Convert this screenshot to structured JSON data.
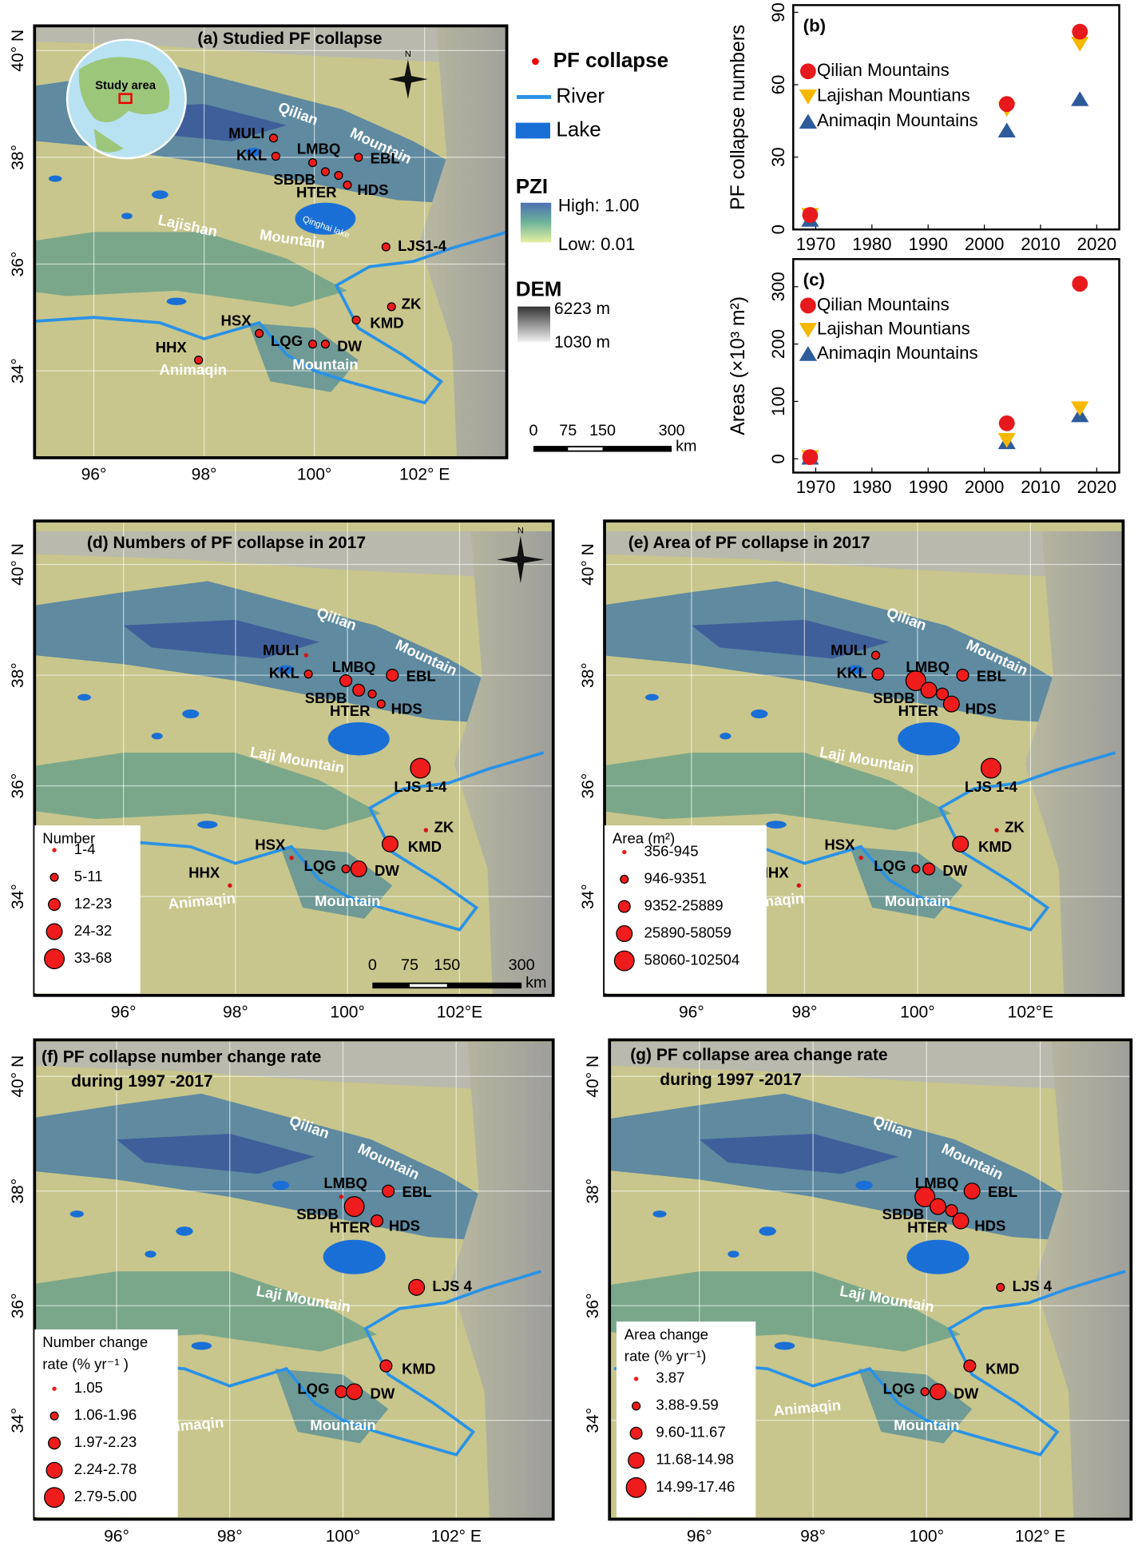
{
  "maps": [
    {
      "title": "(a) Studied PF collapse",
      "lon_ticks": [
        "96°",
        "98°",
        "100°",
        "102° E"
      ],
      "lat_ticks": [
        "40° N",
        "38°",
        "36°",
        "34°"
      ],
      "sites": [
        "MULI",
        "KKL",
        "LMBQ",
        "SBDB",
        "HTER",
        "HDS",
        "EBL",
        "LJS1-4",
        "ZK",
        "KMD",
        "DW",
        "LQG",
        "HSX",
        "HHX"
      ],
      "regions": [
        "Qilian",
        "Mountain",
        "Lajishan",
        "Mountain",
        "Animaqin",
        "Mountain"
      ],
      "lake_label": "Qinghai lake",
      "inset_label": "Study area",
      "north": "N",
      "legend": {
        "items": [
          "PF collapse",
          "River",
          "Lake"
        ],
        "pzi_title": "PZI",
        "pzi_high": "High: 1.00",
        "pzi_low": "Low: 0.01",
        "dem_title": "DEM",
        "dem_high": "6223 m",
        "dem_low": "1030 m"
      },
      "scale": {
        "ticks": [
          0,
          75,
          150,
          300
        ],
        "unit": "km"
      }
    },
    {
      "title": "(d) Numbers of PF collapse in 2017",
      "lon_ticks": [
        "96°",
        "98°",
        "100°",
        "102°E"
      ],
      "lat_ticks": [
        "40° N",
        "38°",
        "36°",
        "34°"
      ],
      "sites": [
        "MULI",
        "KKL",
        "LMBQ",
        "SBDB",
        "HTER",
        "HDS",
        "EBL",
        "LJS 1-4",
        "ZK",
        "KMD",
        "DW",
        "LQG",
        "HSX",
        "HHX"
      ],
      "regions": [
        "Qilian",
        "Mountain",
        "Laji Mountain",
        "Animaqin",
        "Mountain"
      ],
      "north": "N",
      "legend": {
        "title": [
          "Number"
        ],
        "items": [
          "1-4",
          "5-11",
          "12-23",
          "24-32",
          "33-68"
        ]
      },
      "scale": {
        "ticks": [
          0,
          75,
          150,
          300
        ],
        "unit": "km"
      }
    },
    {
      "title": "(e) Area of PF collapse in 2017",
      "lon_ticks": [
        "96°",
        "98°",
        "100°",
        "102°E"
      ],
      "lat_ticks": [
        "40° N",
        "38°",
        "36°",
        "34°"
      ],
      "sites": [
        "MULI",
        "KKL",
        "LMBQ",
        "SBDB",
        "HTER",
        "HDS",
        "EBL",
        "LJS 1-4",
        "ZK",
        "KMD",
        "DW",
        "LQG",
        "HSX",
        "HHX"
      ],
      "regions": [
        "Qilian",
        "Mountain",
        "Laji Mountain",
        "Animaqin",
        "Mountain"
      ],
      "legend": {
        "title": [
          "Area (m²)"
        ],
        "items": [
          "356-945",
          "946-9351",
          "9352-25889",
          "25890-58059",
          "58060-102504"
        ]
      }
    },
    {
      "title": "(f) PF collapse number change rate",
      "subtitle": "during 1997 -2017",
      "lon_ticks": [
        "96°",
        "98°",
        "100°",
        "102° E"
      ],
      "lat_ticks": [
        "40° N",
        "38°",
        "36°",
        "34°"
      ],
      "sites": [
        "LMBQ",
        "SBDB",
        "HTER",
        "HDS",
        "EBL",
        "LJS 4",
        "KMD",
        "LQG",
        "DW"
      ],
      "regions": [
        "Qilian",
        "Mountain",
        "Laji Mountain",
        "Animaqin",
        "Mountain"
      ],
      "legend": {
        "title": [
          "Number change",
          "rate  (% yr⁻¹ )"
        ],
        "items": [
          "1.05",
          "1.06-1.96",
          "1.97-2.23",
          "2.24-2.78",
          "2.79-5.00"
        ]
      }
    },
    {
      "title": "(g) PF collapse area change rate",
      "subtitle": "during 1997 -2017",
      "lon_ticks": [
        "96°",
        "98°",
        "100°",
        "102° E"
      ],
      "lat_ticks": [
        "40° N",
        "38°",
        "36°",
        "34°"
      ],
      "sites": [
        "LMBQ",
        "SBDB",
        "HTER",
        "HDS",
        "EBL",
        "LJS 4",
        "KMD",
        "LQG",
        "DW"
      ],
      "regions": [
        "Qilian",
        "Mountain",
        "Laji Mountain",
        "Animaqin",
        "Mountain"
      ],
      "legend": {
        "title": [
          "Area change",
          "rate  (% yr⁻¹)"
        ],
        "items": [
          "3.87",
          "3.88-9.59",
          "9.60-11.67",
          "11.68-14.98",
          "14.99-17.46"
        ]
      }
    }
  ],
  "chart_data": [
    {
      "type": "scatter",
      "title": "(b)",
      "ylabel": "PF collapse numbers",
      "x": [
        1969,
        2004,
        2017
      ],
      "series": [
        {
          "name": "Qilian Mountains",
          "color": "#e8191c",
          "marker": "circle",
          "values": [
            6,
            52,
            82
          ]
        },
        {
          "name": "Lajishan Mountians",
          "color": "#f5b800",
          "marker": "triangle-down",
          "values": [
            6,
            50,
            77
          ]
        },
        {
          "name": "Animaqin Mountains",
          "color": "#2e5c9a",
          "marker": "triangle-up",
          "values": [
            4,
            41,
            54
          ]
        }
      ],
      "xlim": [
        1966,
        2024
      ],
      "xticks": [
        1970,
        1980,
        1990,
        2000,
        2010,
        2020
      ],
      "ylim": [
        0,
        93
      ],
      "yticks": [
        0,
        30,
        60,
        90
      ]
    },
    {
      "type": "scatter",
      "title": "(c)",
      "ylabel": "Areas (×10³ m²)",
      "x": [
        1969,
        2004,
        2017
      ],
      "series": [
        {
          "name": "Qilian Mountains",
          "color": "#e8191c",
          "marker": "circle",
          "values": [
            3,
            62,
            305
          ]
        },
        {
          "name": "Lajishan Mountians",
          "color": "#f5b800",
          "marker": "triangle-down",
          "values": [
            3,
            33,
            88
          ]
        },
        {
          "name": "Animaqin Mountains",
          "color": "#2e5c9a",
          "marker": "triangle-up",
          "values": [
            2,
            29,
            76
          ]
        }
      ],
      "xlim": [
        1966,
        2024
      ],
      "xticks": [
        1970,
        1980,
        1990,
        2000,
        2010,
        2020
      ],
      "ylim": [
        -24,
        348
      ],
      "yticks": [
        0,
        100,
        200,
        300
      ]
    }
  ]
}
